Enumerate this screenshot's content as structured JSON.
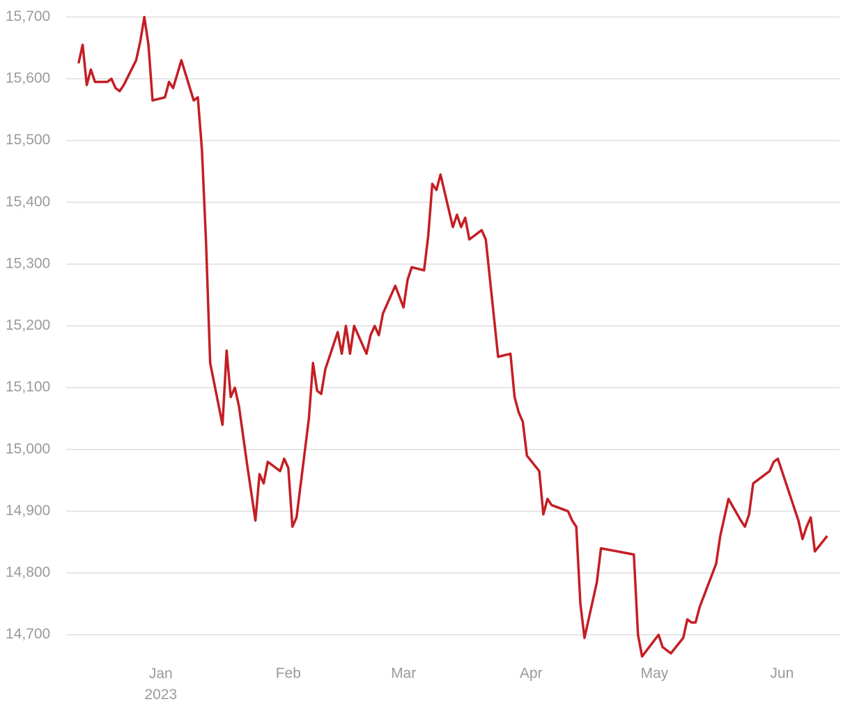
{
  "chart_data": {
    "type": "line",
    "x": [
      -20,
      -19,
      -18,
      -17,
      -16,
      -13,
      -12,
      -11,
      -10,
      -9,
      -6,
      -5,
      -4,
      -3,
      -2,
      1,
      2,
      3,
      5,
      8,
      9,
      10,
      11,
      12,
      15,
      16,
      17,
      18,
      19,
      21,
      23,
      24,
      25,
      26,
      29,
      30,
      31,
      32,
      33,
      36,
      37,
      38,
      39,
      40,
      43,
      44,
      45,
      46,
      47,
      50,
      51,
      52,
      53,
      54,
      57,
      59,
      60,
      61,
      64,
      65,
      66,
      67,
      68,
      71,
      72,
      73,
      74,
      75,
      78,
      79,
      82,
      85,
      86,
      87,
      88,
      89,
      92,
      93,
      94,
      95,
      99,
      100,
      101,
      102,
      103,
      106,
      107,
      115,
      116,
      117,
      121,
      122,
      124,
      127,
      128,
      129,
      130,
      131,
      135,
      136,
      138,
      141,
      142,
      143,
      144,
      148,
      149,
      150,
      155,
      156,
      157,
      158,
      159,
      162
    ],
    "series": [
      {
        "color": "#c41e24",
        "values": [
          15625,
          15655,
          15590,
          15615,
          15595,
          15595,
          15600,
          15585,
          15580,
          15590,
          15630,
          15660,
          15700,
          15655,
          15565,
          15570,
          15595,
          15585,
          15630,
          15565,
          15570,
          15485,
          15335,
          15140,
          15040,
          15160,
          15085,
          15100,
          15070,
          14975,
          14885,
          14960,
          14945,
          14980,
          14965,
          14985,
          14970,
          14875,
          14890,
          15050,
          15140,
          15095,
          15090,
          15130,
          15190,
          15155,
          15200,
          15155,
          15200,
          15155,
          15185,
          15200,
          15185,
          15220,
          15265,
          15230,
          15275,
          15295,
          15290,
          15345,
          15430,
          15420,
          15445,
          15360,
          15380,
          15360,
          15375,
          15340,
          15355,
          15340,
          15150,
          15155,
          15085,
          15060,
          15045,
          14990,
          14965,
          14895,
          14920,
          14910,
          14900,
          14885,
          14875,
          14750,
          14695,
          14785,
          14840,
          14830,
          14700,
          14665,
          14700,
          14680,
          14670,
          14695,
          14725,
          14720,
          14720,
          14745,
          14815,
          14860,
          14920,
          14885,
          14875,
          14895,
          14945,
          14965,
          14980,
          14985,
          14885,
          14855,
          14875,
          14890,
          14835,
          14860
        ]
      }
    ],
    "xlim": [
      -23,
      165
    ],
    "xticks": [
      {
        "value": 0,
        "label": "Jan 2023"
      },
      {
        "value": 31,
        "label": "Feb"
      },
      {
        "value": 59,
        "label": "Mar"
      },
      {
        "value": 90,
        "label": "Apr"
      },
      {
        "value": 120,
        "label": "May"
      },
      {
        "value": 151,
        "label": "Jun"
      }
    ],
    "ylim": [
      14650,
      15705
    ],
    "yticks": [
      {
        "value": 14700,
        "label": "14,700"
      },
      {
        "value": 14800,
        "label": "14,800"
      },
      {
        "value": 14900,
        "label": "14,900"
      },
      {
        "value": 15000,
        "label": "15,000"
      },
      {
        "value": 15100,
        "label": "15,100"
      },
      {
        "value": 15200,
        "label": "15,200"
      },
      {
        "value": 15300,
        "label": "15,300"
      },
      {
        "value": 15400,
        "label": "15,400"
      },
      {
        "value": 15500,
        "label": "15,500"
      },
      {
        "value": 15600,
        "label": "15,600"
      },
      {
        "value": 15700,
        "label": "15,700"
      }
    ],
    "grid": true
  }
}
